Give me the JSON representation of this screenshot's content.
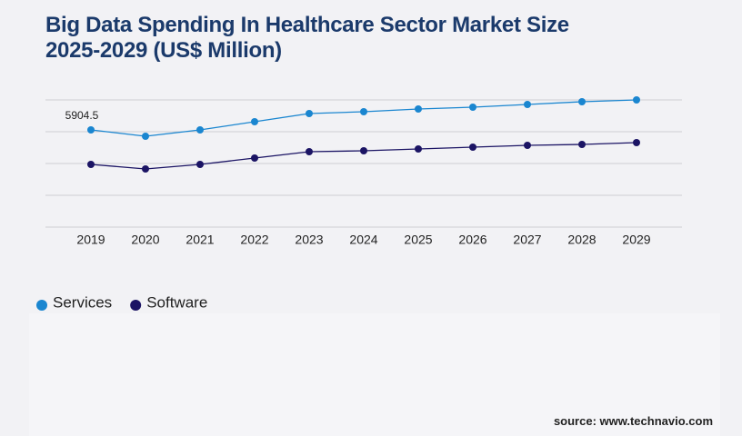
{
  "chart_data": {
    "type": "line",
    "title": "Big Data Spending In Healthcare Sector Market Size 2025-2029 (US$ Million)",
    "categories": [
      "2019",
      "2020",
      "2021",
      "2022",
      "2023",
      "2024",
      "2025",
      "2026",
      "2027",
      "2028",
      "2029"
    ],
    "series": [
      {
        "name": "Services",
        "color": "#1a86d0",
        "values": [
          5904.5,
          5518,
          5904,
          6401,
          6898,
          7008,
          7173,
          7284,
          7449,
          7615,
          7725
        ]
      },
      {
        "name": "Software",
        "color": "#1b1464",
        "values": [
          3807,
          3532,
          3807,
          4194,
          4580,
          4635,
          4745,
          4856,
          4966,
          5021,
          5132
        ]
      }
    ],
    "ylim": [
      0,
      7725
    ],
    "yticks": [
      0,
      1931,
      3862,
      5794,
      7725
    ],
    "grid": true,
    "source": "source: www.technavio.com"
  }
}
